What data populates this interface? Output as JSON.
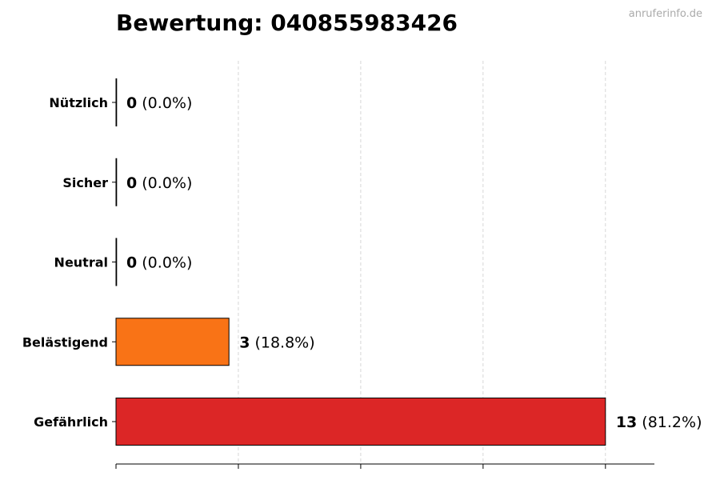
{
  "watermark": "anruferinfo.de",
  "chart_data": {
    "type": "bar",
    "orientation": "horizontal",
    "title": "Bewertung: 040855983426",
    "categories": [
      "Nützlich",
      "Sicher",
      "Neutral",
      "Belästigend",
      "Gefährlich"
    ],
    "values": [
      0,
      0,
      0,
      3,
      13
    ],
    "percent_labels": [
      "(0.0%)",
      "(0.0%)",
      "(0.0%)",
      "(18.8%)",
      "(81.2%)"
    ],
    "colors": [
      "#22c55e",
      "#3b82f6",
      "#9ca3af",
      "#f97316",
      "#dc2626"
    ],
    "xlim": [
      0,
      14.3
    ],
    "xticks": [
      0,
      3.25,
      6.5,
      9.75,
      13
    ],
    "xtick_labels_shown": false,
    "grid": "vertical-dashed",
    "xlabel": "",
    "ylabel": ""
  }
}
